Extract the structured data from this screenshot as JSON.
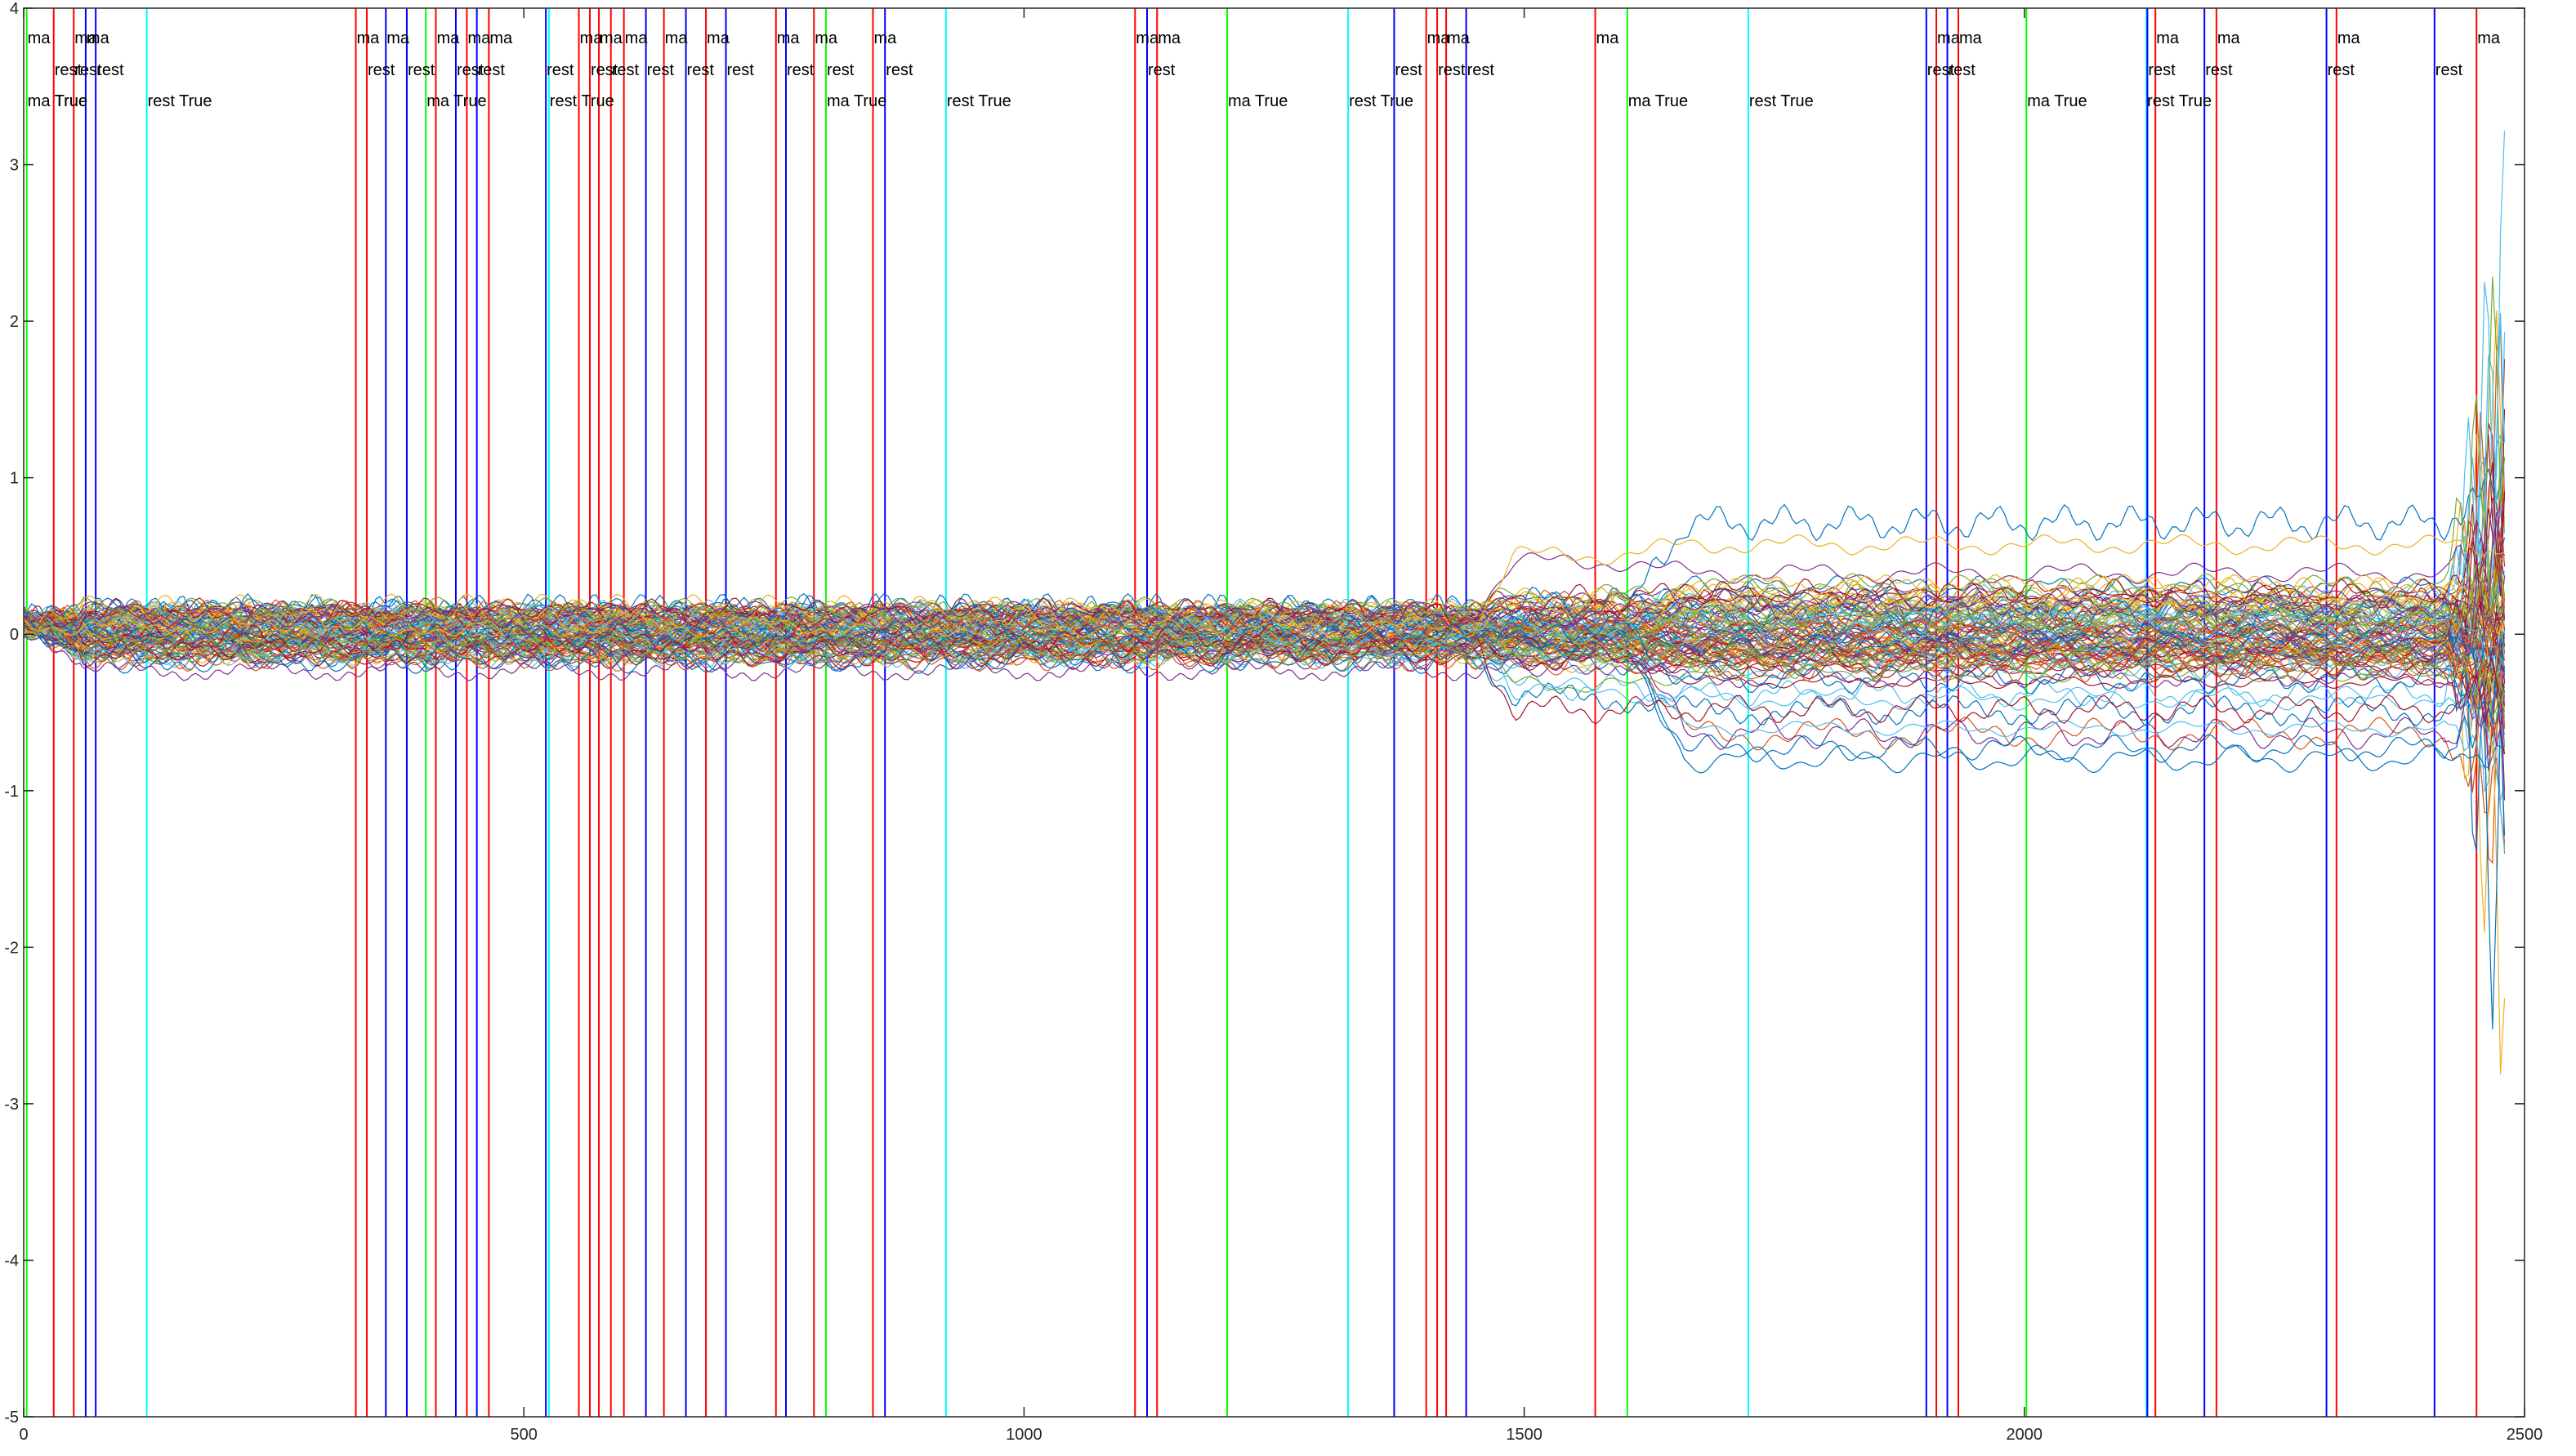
{
  "chart_data": {
    "type": "line",
    "title": "",
    "xlabel": "",
    "ylabel": "",
    "xlim": [
      0,
      2500
    ],
    "ylim": [
      -5,
      4
    ],
    "x_ticks": [
      0,
      500,
      1000,
      1500,
      2000,
      2500
    ],
    "x_tick_labels": [
      "0",
      "500",
      "1000",
      "1500",
      "2000",
      "2500"
    ],
    "y_ticks": [
      -5,
      -4,
      -3,
      -2,
      -1,
      0,
      1,
      2,
      3,
      4
    ],
    "y_tick_labels": [
      "-5",
      "-4",
      "-3",
      "-2",
      "-1",
      "0",
      "1",
      "2",
      "3",
      "4"
    ],
    "grid": false,
    "series_count": 110,
    "series_palette": [
      "#0072BD",
      "#D95319",
      "#EDB120",
      "#7E2F8E",
      "#77AC30",
      "#4DBEEE",
      "#A2142F"
    ],
    "event_colors": {
      "red": "#ff0000",
      "blue": "#0000ff",
      "green": "#00ff00",
      "cyan": "#00ffff"
    },
    "event_markers": [
      {
        "x": 3,
        "color": "green",
        "labels": [
          {
            "text": "ma",
            "row": 0
          },
          {
            "text": "ma True",
            "row": 2
          }
        ]
      },
      {
        "x": 30,
        "color": "red",
        "labels": [
          {
            "text": "rest",
            "row": 1
          },
          {
            "text": "True",
            "row": 2
          }
        ]
      },
      {
        "x": 50,
        "color": "red",
        "labels": [
          {
            "text": "ma",
            "row": 0
          },
          {
            "text": "rest",
            "row": 1
          }
        ]
      },
      {
        "x": 62,
        "color": "blue",
        "labels": [
          {
            "text": "ma",
            "row": 0
          }
        ]
      },
      {
        "x": 72,
        "color": "blue",
        "labels": [
          {
            "text": "rest",
            "row": 1
          }
        ]
      },
      {
        "x": 123,
        "color": "cyan",
        "labels": [
          {
            "text": "rest True",
            "row": 2
          }
        ]
      },
      {
        "x": 332,
        "color": "red",
        "labels": [
          {
            "text": "ma",
            "row": 0
          }
        ]
      },
      {
        "x": 343,
        "color": "red",
        "labels": [
          {
            "text": "rest",
            "row": 1
          }
        ]
      },
      {
        "x": 362,
        "color": "blue",
        "labels": [
          {
            "text": "ma",
            "row": 0
          }
        ]
      },
      {
        "x": 383,
        "color": "blue",
        "labels": [
          {
            "text": "rest",
            "row": 1
          }
        ]
      },
      {
        "x": 402,
        "color": "green",
        "labels": [
          {
            "text": "ma True",
            "row": 2
          }
        ]
      },
      {
        "x": 412,
        "color": "red",
        "labels": [
          {
            "text": "ma",
            "row": 0
          }
        ]
      },
      {
        "x": 432,
        "color": "blue",
        "labels": [
          {
            "text": "rest",
            "row": 1
          }
        ]
      },
      {
        "x": 443,
        "color": "red",
        "labels": [
          {
            "text": "ma",
            "row": 0
          }
        ]
      },
      {
        "x": 453,
        "color": "blue",
        "labels": [
          {
            "text": "rest",
            "row": 1
          }
        ]
      },
      {
        "x": 465,
        "color": "red",
        "labels": [
          {
            "text": "ma",
            "row": 0
          }
        ]
      },
      {
        "x": 522,
        "color": "blue",
        "labels": [
          {
            "text": "rest",
            "row": 1
          }
        ]
      },
      {
        "x": 525,
        "color": "cyan",
        "labels": [
          {
            "text": "rest True",
            "row": 2
          }
        ]
      },
      {
        "x": 555,
        "color": "red",
        "labels": [
          {
            "text": "ma",
            "row": 0
          }
        ]
      },
      {
        "x": 566,
        "color": "red",
        "labels": [
          {
            "text": "rest",
            "row": 1
          }
        ]
      },
      {
        "x": 575,
        "color": "red",
        "labels": [
          {
            "text": "ma",
            "row": 0
          }
        ]
      },
      {
        "x": 587,
        "color": "red",
        "labels": [
          {
            "text": "rest",
            "row": 1
          }
        ]
      },
      {
        "x": 600,
        "color": "red",
        "labels": [
          {
            "text": "ma",
            "row": 0
          }
        ]
      },
      {
        "x": 622,
        "color": "blue",
        "labels": [
          {
            "text": "rest",
            "row": 1
          }
        ]
      },
      {
        "x": 640,
        "color": "red",
        "labels": [
          {
            "text": "ma",
            "row": 0
          }
        ]
      },
      {
        "x": 662,
        "color": "blue",
        "labels": [
          {
            "text": "rest",
            "row": 1
          }
        ]
      },
      {
        "x": 682,
        "color": "red",
        "labels": [
          {
            "text": "ma",
            "row": 0
          }
        ]
      },
      {
        "x": 702,
        "color": "blue",
        "labels": [
          {
            "text": "rest",
            "row": 1
          }
        ]
      },
      {
        "x": 752,
        "color": "red",
        "labels": [
          {
            "text": "ma",
            "row": 0
          }
        ]
      },
      {
        "x": 762,
        "color": "blue",
        "labels": [
          {
            "text": "rest",
            "row": 1
          }
        ]
      },
      {
        "x": 790,
        "color": "red",
        "labels": [
          {
            "text": "ma",
            "row": 0
          }
        ]
      },
      {
        "x": 802,
        "color": "green",
        "labels": [
          {
            "text": "rest",
            "row": 1
          },
          {
            "text": "ma True",
            "row": 2
          }
        ]
      },
      {
        "x": 849,
        "color": "red",
        "labels": [
          {
            "text": "ma",
            "row": 0
          }
        ]
      },
      {
        "x": 861,
        "color": "blue",
        "labels": [
          {
            "text": "rest",
            "row": 1
          }
        ]
      },
      {
        "x": 922,
        "color": "cyan",
        "labels": [
          {
            "text": "rest True",
            "row": 2
          }
        ]
      },
      {
        "x": 1111,
        "color": "red",
        "labels": [
          {
            "text": "ma",
            "row": 0
          }
        ]
      },
      {
        "x": 1123,
        "color": "blue",
        "labels": [
          {
            "text": "rest",
            "row": 1
          }
        ]
      },
      {
        "x": 1133,
        "color": "red",
        "labels": [
          {
            "text": "ma",
            "row": 0
          }
        ]
      },
      {
        "x": 1203,
        "color": "green",
        "labels": [
          {
            "text": "ma True",
            "row": 2
          }
        ]
      },
      {
        "x": 1324,
        "color": "cyan",
        "labels": [
          {
            "text": "rest True",
            "row": 2
          }
        ]
      },
      {
        "x": 1370,
        "color": "blue",
        "labels": [
          {
            "text": "rest",
            "row": 1
          }
        ]
      },
      {
        "x": 1402,
        "color": "red",
        "labels": [
          {
            "text": "ma",
            "row": 0
          }
        ]
      },
      {
        "x": 1413,
        "color": "red",
        "labels": [
          {
            "text": "rest",
            "row": 1
          }
        ]
      },
      {
        "x": 1422,
        "color": "red",
        "labels": [
          {
            "text": "ma",
            "row": 0
          }
        ]
      },
      {
        "x": 1442,
        "color": "blue",
        "labels": [
          {
            "text": "rest",
            "row": 1
          }
        ]
      },
      {
        "x": 1571,
        "color": "red",
        "labels": [
          {
            "text": "ma",
            "row": 0
          }
        ]
      },
      {
        "x": 1603,
        "color": "green",
        "labels": [
          {
            "text": "ma True",
            "row": 2
          }
        ]
      },
      {
        "x": 1724,
        "color": "cyan",
        "labels": [
          {
            "text": "rest True",
            "row": 2
          }
        ]
      },
      {
        "x": 1902,
        "color": "blue",
        "labels": [
          {
            "text": "rest",
            "row": 1
          }
        ]
      },
      {
        "x": 1912,
        "color": "red",
        "labels": [
          {
            "text": "ma",
            "row": 0
          }
        ]
      },
      {
        "x": 1923,
        "color": "blue",
        "labels": [
          {
            "text": "rest",
            "row": 1
          }
        ]
      },
      {
        "x": 1934,
        "color": "red",
        "labels": [
          {
            "text": "ma",
            "row": 0
          }
        ]
      },
      {
        "x": 2002,
        "color": "green",
        "labels": [
          {
            "text": "ma True",
            "row": 2
          }
        ]
      },
      {
        "x": 2122,
        "color": "cyan",
        "labels": [
          {
            "text": "rest True",
            "row": 2
          }
        ]
      },
      {
        "x": 2123,
        "color": "blue",
        "labels": [
          {
            "text": "rest",
            "row": 1
          }
        ]
      },
      {
        "x": 2131,
        "color": "red",
        "labels": [
          {
            "text": "ma",
            "row": 0
          }
        ]
      },
      {
        "x": 2180,
        "color": "blue",
        "labels": [
          {
            "text": "rest",
            "row": 1
          }
        ]
      },
      {
        "x": 2192,
        "color": "red",
        "labels": [
          {
            "text": "ma",
            "row": 0
          }
        ]
      },
      {
        "x": 2302,
        "color": "blue",
        "labels": [
          {
            "text": "rest",
            "row": 1
          }
        ]
      },
      {
        "x": 2312,
        "color": "red",
        "labels": [
          {
            "text": "ma",
            "row": 0
          }
        ]
      },
      {
        "x": 2410,
        "color": "blue",
        "labels": [
          {
            "text": "rest",
            "row": 1
          }
        ]
      },
      {
        "x": 2452,
        "color": "red",
        "labels": [
          {
            "text": "ma",
            "row": 0
          }
        ]
      }
    ]
  }
}
